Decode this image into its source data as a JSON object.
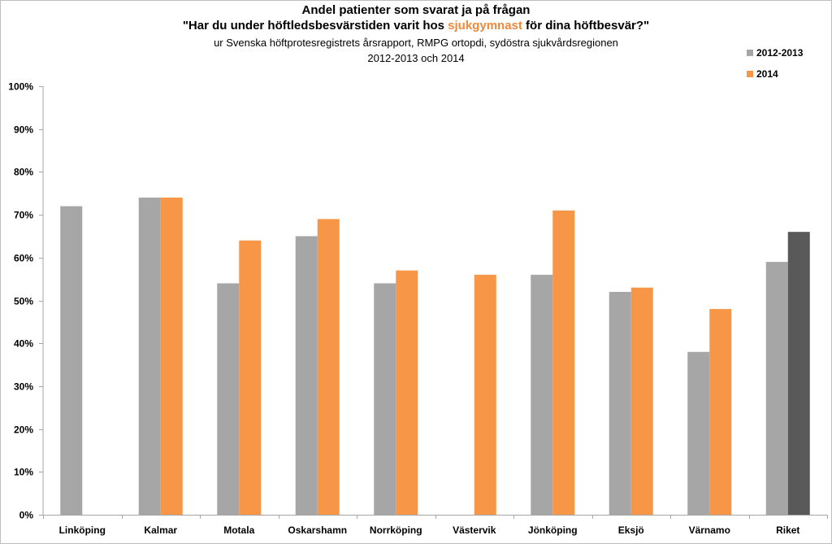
{
  "chart_data": {
    "type": "bar",
    "title": "Andel patienter som svarat ja på frågan",
    "question_prefix": "\"Har du under höftledsbesvärstiden varit hos ",
    "question_highlight": "sjukgymnast",
    "question_suffix": " för dina höftbesvär?\"",
    "subtitle": "ur Svenska höftprotesregistrets årsrapport, RMPG ortopdi, sydöstra sjukvårdsregionen",
    "subtitle2": "2012-2013 och 2014",
    "categories": [
      "Linköping",
      "Kalmar",
      "Motala",
      "Oskarshamn",
      "Norrköping",
      "Västervik",
      "Jönköping",
      "Eksjö",
      "Värnamo",
      "Riket"
    ],
    "series": [
      {
        "name": "2012-2013",
        "color": "#a6a6a6",
        "values": [
          72,
          74,
          54,
          65,
          54,
          null,
          56,
          52,
          38,
          59
        ]
      },
      {
        "name": "2014",
        "color": "#f79646",
        "values": [
          null,
          74,
          64,
          69,
          57,
          56,
          71,
          53,
          48,
          66
        ]
      }
    ],
    "highlight_bar": {
      "series": "2014",
      "category": "Riket",
      "color": "#595959"
    },
    "ylim": [
      0,
      100
    ],
    "yticks": [
      0,
      10,
      20,
      30,
      40,
      50,
      60,
      70,
      80,
      90,
      100
    ],
    "ytick_format": "percent",
    "grid": false,
    "legend_position": "top-right",
    "xlabel": "",
    "ylabel": ""
  }
}
